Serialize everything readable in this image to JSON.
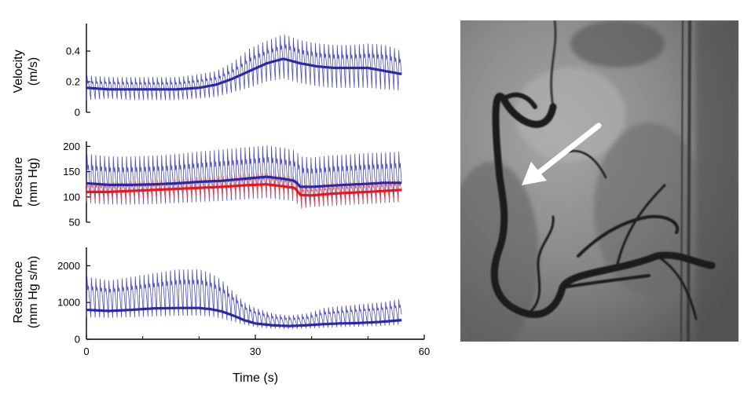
{
  "chart_data": [
    {
      "type": "line",
      "ylabel": "Velocity\n(m/s)",
      "ylim": [
        0,
        0.58
      ],
      "yticks": [
        0,
        0.2,
        0.4
      ],
      "ytick_labels": [
        "0",
        "0.2",
        "0.4"
      ],
      "xlim": [
        0,
        60
      ],
      "series": [
        {
          "role": "mean",
          "color": "#2a2a9e",
          "x": [
            0,
            4,
            8,
            12,
            16,
            20,
            23,
            26,
            29,
            32,
            35,
            38,
            41,
            44,
            47,
            50,
            53,
            56
          ],
          "y": [
            0.16,
            0.15,
            0.15,
            0.15,
            0.15,
            0.16,
            0.18,
            0.22,
            0.27,
            0.32,
            0.35,
            0.32,
            0.3,
            0.29,
            0.29,
            0.29,
            0.27,
            0.25
          ]
        },
        {
          "role": "phasic",
          "color": "#3a3ab8",
          "beat_period": 0.78,
          "envelope_x": [
            0,
            4,
            8,
            12,
            16,
            20,
            23,
            26,
            29,
            32,
            35,
            38,
            41,
            44,
            47,
            50,
            53,
            56
          ],
          "envelope_max": [
            0.24,
            0.23,
            0.23,
            0.23,
            0.23,
            0.25,
            0.27,
            0.33,
            0.42,
            0.47,
            0.51,
            0.47,
            0.45,
            0.44,
            0.44,
            0.45,
            0.44,
            0.4
          ],
          "envelope_min": [
            0.08,
            0.09,
            0.08,
            0.08,
            0.08,
            0.09,
            0.1,
            0.13,
            0.16,
            0.2,
            0.22,
            0.19,
            0.17,
            0.16,
            0.16,
            0.16,
            0.15,
            0.14
          ]
        }
      ]
    },
    {
      "type": "line",
      "ylabel": "Pressure\n(mm Hg)",
      "ylim": [
        50,
        210
      ],
      "yticks": [
        50,
        100,
        150,
        200
      ],
      "ytick_labels": [
        "50",
        "100",
        "150",
        "200"
      ],
      "xlim": [
        0,
        60
      ],
      "series": [
        {
          "role": "mean",
          "color": "#2a2a9e",
          "x": [
            0,
            4,
            8,
            12,
            16,
            20,
            24,
            28,
            32,
            35,
            37,
            38,
            40,
            43,
            46,
            50,
            53,
            56
          ],
          "y": [
            127,
            124,
            124,
            125,
            127,
            130,
            132,
            136,
            140,
            136,
            132,
            120,
            120,
            122,
            124,
            126,
            128,
            128
          ]
        },
        {
          "role": "phasic",
          "color": "#3a3ab8",
          "beat_period": 0.78,
          "envelope_x": [
            0,
            4,
            8,
            12,
            16,
            20,
            24,
            28,
            32,
            35,
            37,
            38,
            40,
            43,
            46,
            50,
            53,
            56
          ],
          "envelope_max": [
            185,
            180,
            180,
            182,
            185,
            190,
            194,
            198,
            202,
            197,
            192,
            180,
            178,
            182,
            184,
            187,
            188,
            190
          ],
          "envelope_min": [
            88,
            85,
            85,
            86,
            88,
            90,
            92,
            95,
            98,
            94,
            92,
            80,
            80,
            82,
            84,
            86,
            88,
            90
          ]
        },
        {
          "role": "mean",
          "color": "#e31a1c",
          "x": [
            0,
            4,
            8,
            12,
            16,
            20,
            24,
            28,
            32,
            35,
            37,
            38,
            40,
            43,
            46,
            50,
            53,
            56
          ],
          "y": [
            110,
            110,
            112,
            114,
            116,
            118,
            120,
            123,
            125,
            121,
            118,
            104,
            103,
            106,
            108,
            110,
            112,
            114
          ]
        },
        {
          "role": "phasic",
          "color": "#f04848",
          "beat_period": 0.78,
          "envelope_x": [
            0,
            4,
            8,
            12,
            16,
            20,
            24,
            28,
            32,
            35,
            37,
            38,
            40,
            43,
            46,
            50,
            53,
            56
          ],
          "envelope_max": [
            132,
            130,
            132,
            134,
            136,
            140,
            142,
            145,
            148,
            143,
            140,
            126,
            124,
            128,
            130,
            132,
            134,
            136
          ],
          "envelope_min": [
            92,
            92,
            94,
            95,
            97,
            99,
            101,
            104,
            106,
            102,
            99,
            75,
            82,
            86,
            88,
            90,
            92,
            94
          ]
        }
      ]
    },
    {
      "type": "line",
      "ylabel": "Resistance\n(mm Hg s/m)",
      "ylim": [
        0,
        2500
      ],
      "yticks": [
        0,
        1000,
        2000
      ],
      "ytick_labels": [
        "0",
        "1000",
        "2000"
      ],
      "xlim": [
        0,
        60
      ],
      "xticks": [
        0,
        30,
        60
      ],
      "xtick_labels": [
        "0",
        "30",
        "60"
      ],
      "xminor": [
        10,
        20,
        40,
        50
      ],
      "xlabel": "Time (s)",
      "series": [
        {
          "role": "mean",
          "color": "#2a2a9e",
          "x": [
            0,
            4,
            8,
            12,
            16,
            20,
            22,
            24,
            26,
            28,
            30,
            33,
            36,
            39,
            42,
            45,
            48,
            52,
            56
          ],
          "y": [
            800,
            770,
            800,
            840,
            850,
            850,
            820,
            760,
            650,
            520,
            430,
            380,
            360,
            380,
            410,
            430,
            440,
            470,
            520
          ]
        },
        {
          "role": "phasic",
          "color": "#3a3ab8",
          "beat_period": 0.78,
          "envelope_x": [
            0,
            4,
            8,
            12,
            16,
            20,
            22,
            24,
            26,
            28,
            30,
            33,
            36,
            39,
            42,
            45,
            48,
            52,
            56
          ],
          "envelope_max": [
            1700,
            1600,
            1700,
            1800,
            1900,
            1900,
            1800,
            1600,
            1300,
            1000,
            850,
            700,
            650,
            700,
            850,
            900,
            950,
            1000,
            1100
          ],
          "envelope_min": [
            600,
            580,
            600,
            620,
            640,
            640,
            620,
            560,
            480,
            400,
            330,
            290,
            280,
            290,
            310,
            330,
            340,
            360,
            400
          ]
        }
      ]
    }
  ],
  "angiogram": {
    "arrow_color": "#ffffff"
  }
}
